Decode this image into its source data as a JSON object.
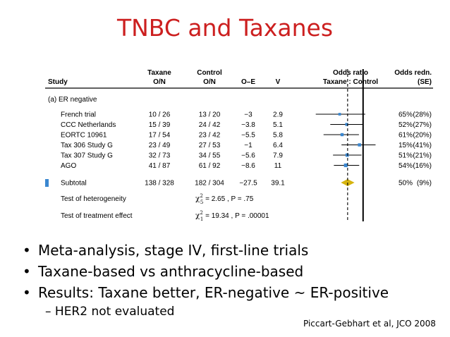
{
  "slide": {
    "title": "TNBC and Taxanes",
    "bullets": [
      "Meta-analysis, stage IV, first-line trials",
      "Taxane-based vs anthracycline-based",
      "Results: Taxane better, ER-negative ~ ER-positive"
    ],
    "sub_bullets": [
      "HER2 not evaluated"
    ],
    "bullet_glyph": "•",
    "sub_bullet_glyph": "–",
    "citation": "Piccart-Gebhart et al, JCO 2008"
  },
  "chart_data": {
    "type": "forest",
    "headers": {
      "study": "Study",
      "taxane": [
        "Taxane",
        "O/N"
      ],
      "control": [
        "Control",
        "O/N"
      ],
      "oe": "O–E",
      "v": "V",
      "odds_ratio": [
        "Odds ratio",
        "Taxane : Control"
      ],
      "odds_redn": [
        "Odds redn.",
        "(SE)"
      ]
    },
    "group_label": "(a) ER negative",
    "rows": [
      {
        "study": "French trial",
        "taxane": "10 / 26",
        "control": "13 / 20",
        "oe": "−3",
        "v": "2.9",
        "or": 0.35,
        "lo": 0.12,
        "hi": 1.1,
        "redn": "65%",
        "se": "(28%)"
      },
      {
        "study": "CCC Netherlands",
        "taxane": "15 / 39",
        "control": "24 / 42",
        "oe": "−3.8",
        "v": "5.1",
        "or": 0.48,
        "lo": 0.23,
        "hi": 1.0,
        "redn": "52%",
        "se": "(27%)"
      },
      {
        "study": "EORTC 10961",
        "taxane": "17 / 54",
        "control": "23 / 42",
        "oe": "−5.5",
        "v": "5.8",
        "or": 0.39,
        "lo": 0.17,
        "hi": 0.83,
        "redn": "61%",
        "se": "(20%)"
      },
      {
        "study": "Tax 306 Study G",
        "taxane": "23 / 49",
        "control": "27 / 53",
        "oe": "−1",
        "v": "6.4",
        "or": 0.85,
        "lo": 0.38,
        "hi": 1.75,
        "redn": "15%",
        "se": "(41%)"
      },
      {
        "study": "Tax 307 Study G",
        "taxane": "32 / 73",
        "control": "34 / 55",
        "oe": "−5.6",
        "v": "7.9",
        "or": 0.49,
        "lo": 0.26,
        "hi": 0.93,
        "redn": "51%",
        "se": "(21%)"
      },
      {
        "study": "AGO",
        "taxane": "41 / 87",
        "control": "61 / 92",
        "oe": "−8.6",
        "v": "11",
        "or": 0.46,
        "lo": 0.27,
        "hi": 0.84,
        "redn": "54%",
        "se": "(16%)"
      }
    ],
    "subtotal": {
      "study": "Subtotal",
      "taxane": "138 / 328",
      "control": "182 / 304",
      "oe": "−27.5",
      "v": "39.1",
      "or": 0.5,
      "lo": 0.37,
      "hi": 0.68,
      "redn": "50%",
      "se": "(9%)"
    },
    "tests": [
      {
        "label": "Test of heterogeneity",
        "stat_sym": "χ",
        "sup": "2",
        "sub": "5",
        "stat": " = 2.65 , P = .75"
      },
      {
        "label": "Test of treatment effect",
        "stat_sym": "χ",
        "sup": "2",
        "sub": "1",
        "stat": " = 19.34 , P = .00001"
      }
    ],
    "x_scale": "log",
    "x_range": [
      0.05,
      2.6
    ],
    "reference_line": 1,
    "pooled_line": 0.5,
    "colors": {
      "box": "#3a87d0",
      "diamond": "#d6b40e",
      "text": "#000000"
    }
  }
}
